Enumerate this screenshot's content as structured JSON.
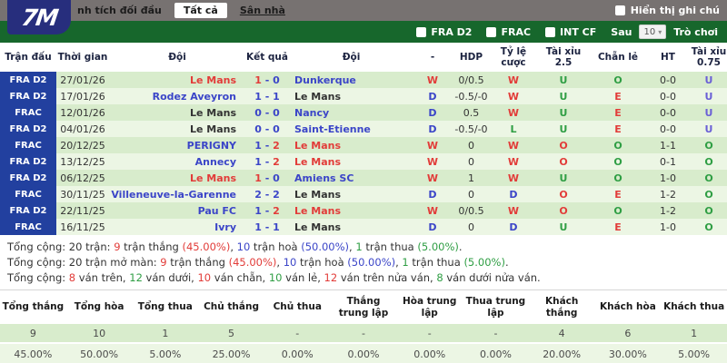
{
  "colors": {
    "accent_green": "#17672c",
    "badge_navy": "#22409f",
    "win_red": "#e23c39",
    "draw_blue": "#3b45c8",
    "loss_green": "#2f9e44",
    "under_violet": "#6a5fd6",
    "row_dark": "#d8eccc",
    "row_light": "#ecf6e4",
    "topbar_gray": "#777271"
  },
  "logo": {
    "text": "7M"
  },
  "top_bar": {
    "tab_h2h": "nh tích đối đầu",
    "tab_all": "Tất cả",
    "tab_home": "Sân nhà",
    "note_label": "Hiển thị ghi chú"
  },
  "filter_bar": {
    "leagues": [
      "FRA D2",
      "FRAC",
      "INT CF"
    ],
    "after_label": "Sau",
    "count_value": "10",
    "game_label": "Trò chơi"
  },
  "table": {
    "headers": [
      "Trận đấu",
      "Thời gian",
      "Đội",
      "Kết quả",
      "Đội",
      "-",
      "HDP",
      "Tỷ lệ cược",
      "Tài xỉu 2.5",
      "Chẵn lẻ",
      "HT",
      "Tài xỉu 0.75"
    ],
    "rows": [
      {
        "league": "FRA D2",
        "date": "27/01/26",
        "home": "Le Mans",
        "homeC": "red",
        "s1": "1",
        "s1C": "red",
        "s2": "0",
        "s2C": "blue",
        "away": "Dunkerque",
        "awayC": "blue",
        "res": "W",
        "resC": "red",
        "hdp": "0/0.5",
        "odds": "W",
        "oddsC": "red",
        "ou": "U",
        "ouC": "green",
        "oe": "O",
        "oeC": "green",
        "ht": "0-0",
        "ou2": "U",
        "ou2C": "violet"
      },
      {
        "league": "FRA D2",
        "date": "17/01/26",
        "home": "Rodez Aveyron",
        "homeC": "blue",
        "s1": "1",
        "s1C": "blue",
        "s2": "1",
        "s2C": "blue",
        "away": "Le Mans",
        "awayC": "black",
        "res": "D",
        "resC": "blue",
        "hdp": "-0.5/-0",
        "odds": "W",
        "oddsC": "red",
        "ou": "U",
        "ouC": "green",
        "oe": "E",
        "oeC": "red",
        "ht": "0-0",
        "ou2": "U",
        "ou2C": "violet"
      },
      {
        "league": "FRAC",
        "date": "12/01/26",
        "home": "Le Mans",
        "homeC": "black",
        "s1": "0",
        "s1C": "blue",
        "s2": "0",
        "s2C": "blue",
        "away": "Nancy",
        "awayC": "blue",
        "res": "D",
        "resC": "blue",
        "hdp": "0.5",
        "odds": "W",
        "oddsC": "red",
        "ou": "U",
        "ouC": "green",
        "oe": "E",
        "oeC": "red",
        "ht": "0-0",
        "ou2": "U",
        "ou2C": "violet"
      },
      {
        "league": "FRA D2",
        "date": "04/01/26",
        "home": "Le Mans",
        "homeC": "black",
        "s1": "0",
        "s1C": "blue",
        "s2": "0",
        "s2C": "blue",
        "away": "Saint-Etienne",
        "awayC": "blue",
        "res": "D",
        "resC": "blue",
        "hdp": "-0.5/-0",
        "odds": "L",
        "oddsC": "green",
        "ou": "U",
        "ouC": "green",
        "oe": "E",
        "oeC": "red",
        "ht": "0-0",
        "ou2": "U",
        "ou2C": "violet"
      },
      {
        "league": "FRAC",
        "date": "20/12/25",
        "home": "PERIGNY",
        "homeC": "blue",
        "s1": "1",
        "s1C": "blue",
        "s2": "2",
        "s2C": "red",
        "away": "Le Mans",
        "awayC": "red",
        "res": "W",
        "resC": "red",
        "hdp": "0",
        "odds": "W",
        "oddsC": "red",
        "ou": "O",
        "ouC": "red",
        "oe": "O",
        "oeC": "green",
        "ht": "1-1",
        "ou2": "O",
        "ou2C": "green"
      },
      {
        "league": "FRA D2",
        "date": "13/12/25",
        "home": "Annecy",
        "homeC": "blue",
        "s1": "1",
        "s1C": "blue",
        "s2": "2",
        "s2C": "red",
        "away": "Le Mans",
        "awayC": "red",
        "res": "W",
        "resC": "red",
        "hdp": "0",
        "odds": "W",
        "oddsC": "red",
        "ou": "O",
        "ouC": "red",
        "oe": "O",
        "oeC": "green",
        "ht": "0-1",
        "ou2": "O",
        "ou2C": "green"
      },
      {
        "league": "FRA D2",
        "date": "06/12/25",
        "home": "Le Mans",
        "homeC": "red",
        "s1": "1",
        "s1C": "red",
        "s2": "0",
        "s2C": "blue",
        "away": "Amiens SC",
        "awayC": "blue",
        "res": "W",
        "resC": "red",
        "hdp": "1",
        "odds": "W",
        "oddsC": "red",
        "ou": "U",
        "ouC": "green",
        "oe": "O",
        "oeC": "green",
        "ht": "1-0",
        "ou2": "O",
        "ou2C": "green"
      },
      {
        "league": "FRAC",
        "date": "30/11/25",
        "home": "Villeneuve-la-Garenne",
        "homeC": "blue",
        "s1": "2",
        "s1C": "blue",
        "s2": "2",
        "s2C": "blue",
        "away": "Le Mans",
        "awayC": "black",
        "res": "D",
        "resC": "blue",
        "hdp": "0",
        "odds": "D",
        "oddsC": "blue",
        "ou": "O",
        "ouC": "red",
        "oe": "E",
        "oeC": "red",
        "ht": "1-2",
        "ou2": "O",
        "ou2C": "green"
      },
      {
        "league": "FRA D2",
        "date": "22/11/25",
        "home": "Pau FC",
        "homeC": "blue",
        "s1": "1",
        "s1C": "blue",
        "s2": "2",
        "s2C": "red",
        "away": "Le Mans",
        "awayC": "red",
        "res": "W",
        "resC": "red",
        "hdp": "0/0.5",
        "odds": "W",
        "oddsC": "red",
        "ou": "O",
        "ouC": "red",
        "oe": "O",
        "oeC": "green",
        "ht": "1-2",
        "ou2": "O",
        "ou2C": "green"
      },
      {
        "league": "FRAC",
        "date": "16/11/25",
        "home": "Ivry",
        "homeC": "blue",
        "s1": "1",
        "s1C": "blue",
        "s2": "1",
        "s2C": "blue",
        "away": "Le Mans",
        "awayC": "black",
        "res": "D",
        "resC": "blue",
        "hdp": "0",
        "odds": "D",
        "oddsC": "blue",
        "ou": "U",
        "ouC": "green",
        "oe": "E",
        "oeC": "red",
        "ht": "1-0",
        "ou2": "O",
        "ou2C": "green"
      }
    ]
  },
  "summary": {
    "lines": [
      [
        {
          "t": "Tổng cộng: 20 trận: ",
          "c": "black"
        },
        {
          "t": "9",
          "c": "red"
        },
        {
          "t": " trận thắng ",
          "c": "black"
        },
        {
          "t": "(45.00%)",
          "c": "red"
        },
        {
          "t": ", ",
          "c": "black"
        },
        {
          "t": "10",
          "c": "blue"
        },
        {
          "t": " trận hoà ",
          "c": "black"
        },
        {
          "t": "(50.00%)",
          "c": "blue"
        },
        {
          "t": ", ",
          "c": "black"
        },
        {
          "t": "1",
          "c": "green"
        },
        {
          "t": " trận thua ",
          "c": "black"
        },
        {
          "t": "(5.00%)",
          "c": "green"
        },
        {
          "t": ".",
          "c": "black"
        }
      ],
      [
        {
          "t": "Tổng cộng: 20 trận mở màn: ",
          "c": "black"
        },
        {
          "t": "9",
          "c": "red"
        },
        {
          "t": " trận thắng ",
          "c": "black"
        },
        {
          "t": "(45.00%)",
          "c": "red"
        },
        {
          "t": ", ",
          "c": "black"
        },
        {
          "t": "10",
          "c": "blue"
        },
        {
          "t": " trận hoà ",
          "c": "black"
        },
        {
          "t": "(50.00%)",
          "c": "blue"
        },
        {
          "t": ", ",
          "c": "black"
        },
        {
          "t": "1",
          "c": "green"
        },
        {
          "t": " trận thua ",
          "c": "black"
        },
        {
          "t": "(5.00%)",
          "c": "green"
        },
        {
          "t": ".",
          "c": "black"
        }
      ],
      [
        {
          "t": "Tổng cộng: ",
          "c": "black"
        },
        {
          "t": "8",
          "c": "red"
        },
        {
          "t": " ván trên, ",
          "c": "black"
        },
        {
          "t": "12",
          "c": "green"
        },
        {
          "t": " ván dưới, ",
          "c": "black"
        },
        {
          "t": "10",
          "c": "red"
        },
        {
          "t": " ván chẵn, ",
          "c": "black"
        },
        {
          "t": "10",
          "c": "green"
        },
        {
          "t": " ván lẻ, ",
          "c": "black"
        },
        {
          "t": "12",
          "c": "red"
        },
        {
          "t": " ván trên nửa ván, ",
          "c": "black"
        },
        {
          "t": "8",
          "c": "green"
        },
        {
          "t": " ván dưới nửa ván.",
          "c": "black"
        }
      ]
    ]
  },
  "stats": {
    "headers": [
      "Tổng thắng",
      "Tổng hòa",
      "Tổng thua",
      "Chủ thắng",
      "Chủ thua",
      "Thắng trung lập",
      "Hòa trung lập",
      "Thua trung lập",
      "Khách thắng",
      "Khách hòa",
      "Khách thua"
    ],
    "counts": [
      "9",
      "10",
      "1",
      "5",
      "-",
      "-",
      "-",
      "-",
      "4",
      "6",
      "1"
    ],
    "percents": [
      "45.00%",
      "50.00%",
      "5.00%",
      "25.00%",
      "0.00%",
      "0.00%",
      "0.00%",
      "0.00%",
      "20.00%",
      "30.00%",
      "5.00%"
    ]
  }
}
